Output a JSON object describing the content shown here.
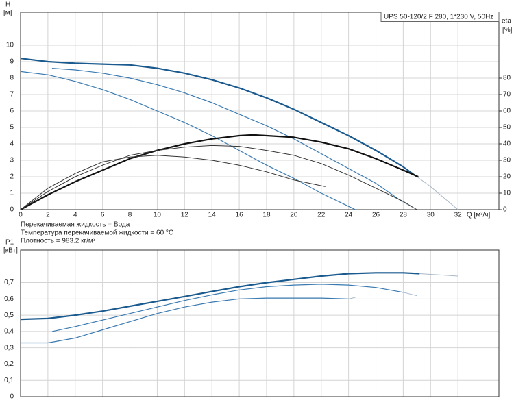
{
  "chart_data": [
    {
      "type": "line",
      "title": "UPS 50-120/2 F 280, 1*230 V, 50Hz",
      "x_label": "Q [м³/ч]",
      "y_label": "H",
      "y_unit": "[м]",
      "y2_label": "eta",
      "y2_unit": "[%]",
      "annotations": [
        "Перекачиваемая жидкость = Вода",
        "Температура перекачиваемой жидкости = 60 °C",
        "Плотность = 983.2 кг/м³"
      ],
      "xlim": [
        0,
        35
      ],
      "xticks": [
        0,
        2,
        4,
        6,
        8,
        10,
        12,
        14,
        16,
        18,
        20,
        22,
        24,
        26,
        28,
        30,
        32
      ],
      "ylim": [
        0,
        12
      ],
      "yticks": [
        0,
        1,
        2,
        3,
        4,
        5,
        6,
        7,
        8,
        9,
        10
      ],
      "y2lim": [
        0,
        120
      ],
      "y2ticks": [
        0,
        10,
        20,
        30,
        40,
        50,
        60,
        70,
        80
      ],
      "grid": true,
      "series": [
        {
          "color": "#1a5a8e",
          "width": 2.2,
          "x": [
            0,
            2,
            4,
            6,
            8,
            10,
            12,
            14,
            16,
            18,
            20,
            22,
            24,
            26,
            28,
            29
          ],
          "values": [
            9.2,
            9.0,
            8.9,
            8.85,
            8.8,
            8.6,
            8.3,
            7.9,
            7.4,
            6.8,
            6.1,
            5.3,
            4.5,
            3.6,
            2.6,
            2.0
          ]
        },
        {
          "color": "#a8b8c8",
          "width": 1,
          "x": [
            29,
            30,
            31,
            32
          ],
          "values": [
            2.0,
            1.4,
            0.7,
            0
          ]
        },
        {
          "color": "#3a7ab0",
          "width": 1.2,
          "x": [
            2.3,
            4,
            6,
            8,
            10,
            12,
            14,
            16,
            18,
            20,
            22,
            24,
            26,
            27.9
          ],
          "values": [
            8.6,
            8.5,
            8.3,
            8.0,
            7.6,
            7.1,
            6.5,
            5.8,
            5.1,
            4.3,
            3.4,
            2.5,
            1.6,
            0.5
          ]
        },
        {
          "color": "#a8b8c8",
          "width": 1,
          "x": [
            27.9,
            29
          ],
          "values": [
            0.5,
            0
          ]
        },
        {
          "color": "#3a7ab0",
          "width": 1.2,
          "x": [
            0,
            2,
            4,
            6,
            8,
            10,
            12,
            14,
            16,
            18,
            20,
            22,
            24,
            24.5
          ],
          "values": [
            8.4,
            8.2,
            7.8,
            7.3,
            6.7,
            6.0,
            5.3,
            4.5,
            3.6,
            2.7,
            1.9,
            1.0,
            0.2,
            0
          ]
        },
        {
          "color": "#111111",
          "width": 2.2,
          "axis": "y2",
          "x": [
            0,
            2,
            4,
            6,
            8,
            10,
            12,
            14,
            16,
            17,
            18,
            20,
            22,
            24,
            26,
            28,
            29.1
          ],
          "values": [
            0,
            9,
            17,
            24,
            31,
            36,
            40,
            43,
            45,
            45.5,
            45,
            44,
            41,
            37,
            31,
            24,
            20
          ]
        },
        {
          "color": "#333333",
          "width": 1,
          "axis": "y2",
          "x": [
            0,
            2,
            4,
            6,
            8,
            10,
            12,
            14,
            16,
            18,
            20,
            22,
            24,
            26,
            28,
            29
          ],
          "values": [
            0,
            11,
            20,
            27,
            33,
            36,
            38,
            39,
            38.5,
            36,
            33,
            28,
            21,
            13,
            5,
            0
          ]
        },
        {
          "color": "#333333",
          "width": 1,
          "axis": "y2",
          "x": [
            0,
            2,
            4,
            6,
            8,
            10,
            12,
            14,
            16,
            18,
            20,
            22.3
          ],
          "values": [
            0,
            13,
            22,
            29,
            32,
            33,
            32,
            30,
            27,
            23,
            18,
            14
          ]
        }
      ]
    },
    {
      "type": "line",
      "y_label": "P1",
      "y_unit": "[кВт]",
      "xlim": [
        0,
        35
      ],
      "ylim": [
        0,
        0.9
      ],
      "yticks": [
        0,
        {
          "value": 0.1,
          "label": "0,1"
        },
        {
          "value": 0.2,
          "label": "0,2"
        },
        {
          "value": 0.3,
          "label": "0,3"
        },
        {
          "value": 0.4,
          "label": "0,4"
        },
        {
          "value": 0.5,
          "label": "0,5"
        },
        {
          "value": 0.6,
          "label": "0,6"
        },
        {
          "value": 0.7,
          "label": "0,7"
        }
      ],
      "grid": true,
      "series": [
        {
          "color": "#1a5a8e",
          "width": 2.2,
          "x": [
            0,
            2,
            4,
            6,
            8,
            10,
            12,
            14,
            16,
            18,
            20,
            22,
            24,
            26,
            28,
            29.2
          ],
          "values": [
            0.475,
            0.48,
            0.5,
            0.525,
            0.555,
            0.585,
            0.615,
            0.645,
            0.675,
            0.7,
            0.72,
            0.74,
            0.755,
            0.76,
            0.76,
            0.755
          ]
        },
        {
          "color": "#a8b8c8",
          "width": 1,
          "x": [
            29.2,
            32
          ],
          "values": [
            0.755,
            0.74
          ]
        },
        {
          "color": "#3a7ab0",
          "width": 1.2,
          "x": [
            2.3,
            4,
            6,
            8,
            10,
            12,
            14,
            16,
            18,
            20,
            22,
            24,
            26,
            28
          ],
          "values": [
            0.4,
            0.43,
            0.47,
            0.51,
            0.55,
            0.59,
            0.625,
            0.655,
            0.675,
            0.685,
            0.69,
            0.685,
            0.67,
            0.64
          ]
        },
        {
          "color": "#a8b8c8",
          "width": 1,
          "x": [
            28,
            29
          ],
          "values": [
            0.64,
            0.62
          ]
        },
        {
          "color": "#3a7ab0",
          "width": 1.2,
          "x": [
            0,
            2,
            4,
            6,
            8,
            10,
            12,
            14,
            16,
            18,
            20,
            22,
            24
          ],
          "values": [
            0.33,
            0.33,
            0.36,
            0.41,
            0.46,
            0.51,
            0.55,
            0.58,
            0.6,
            0.605,
            0.605,
            0.605,
            0.6
          ]
        },
        {
          "color": "#a8b8c8",
          "width": 1,
          "x": [
            24,
            24.5
          ],
          "values": [
            0.6,
            0.61
          ]
        }
      ]
    }
  ]
}
